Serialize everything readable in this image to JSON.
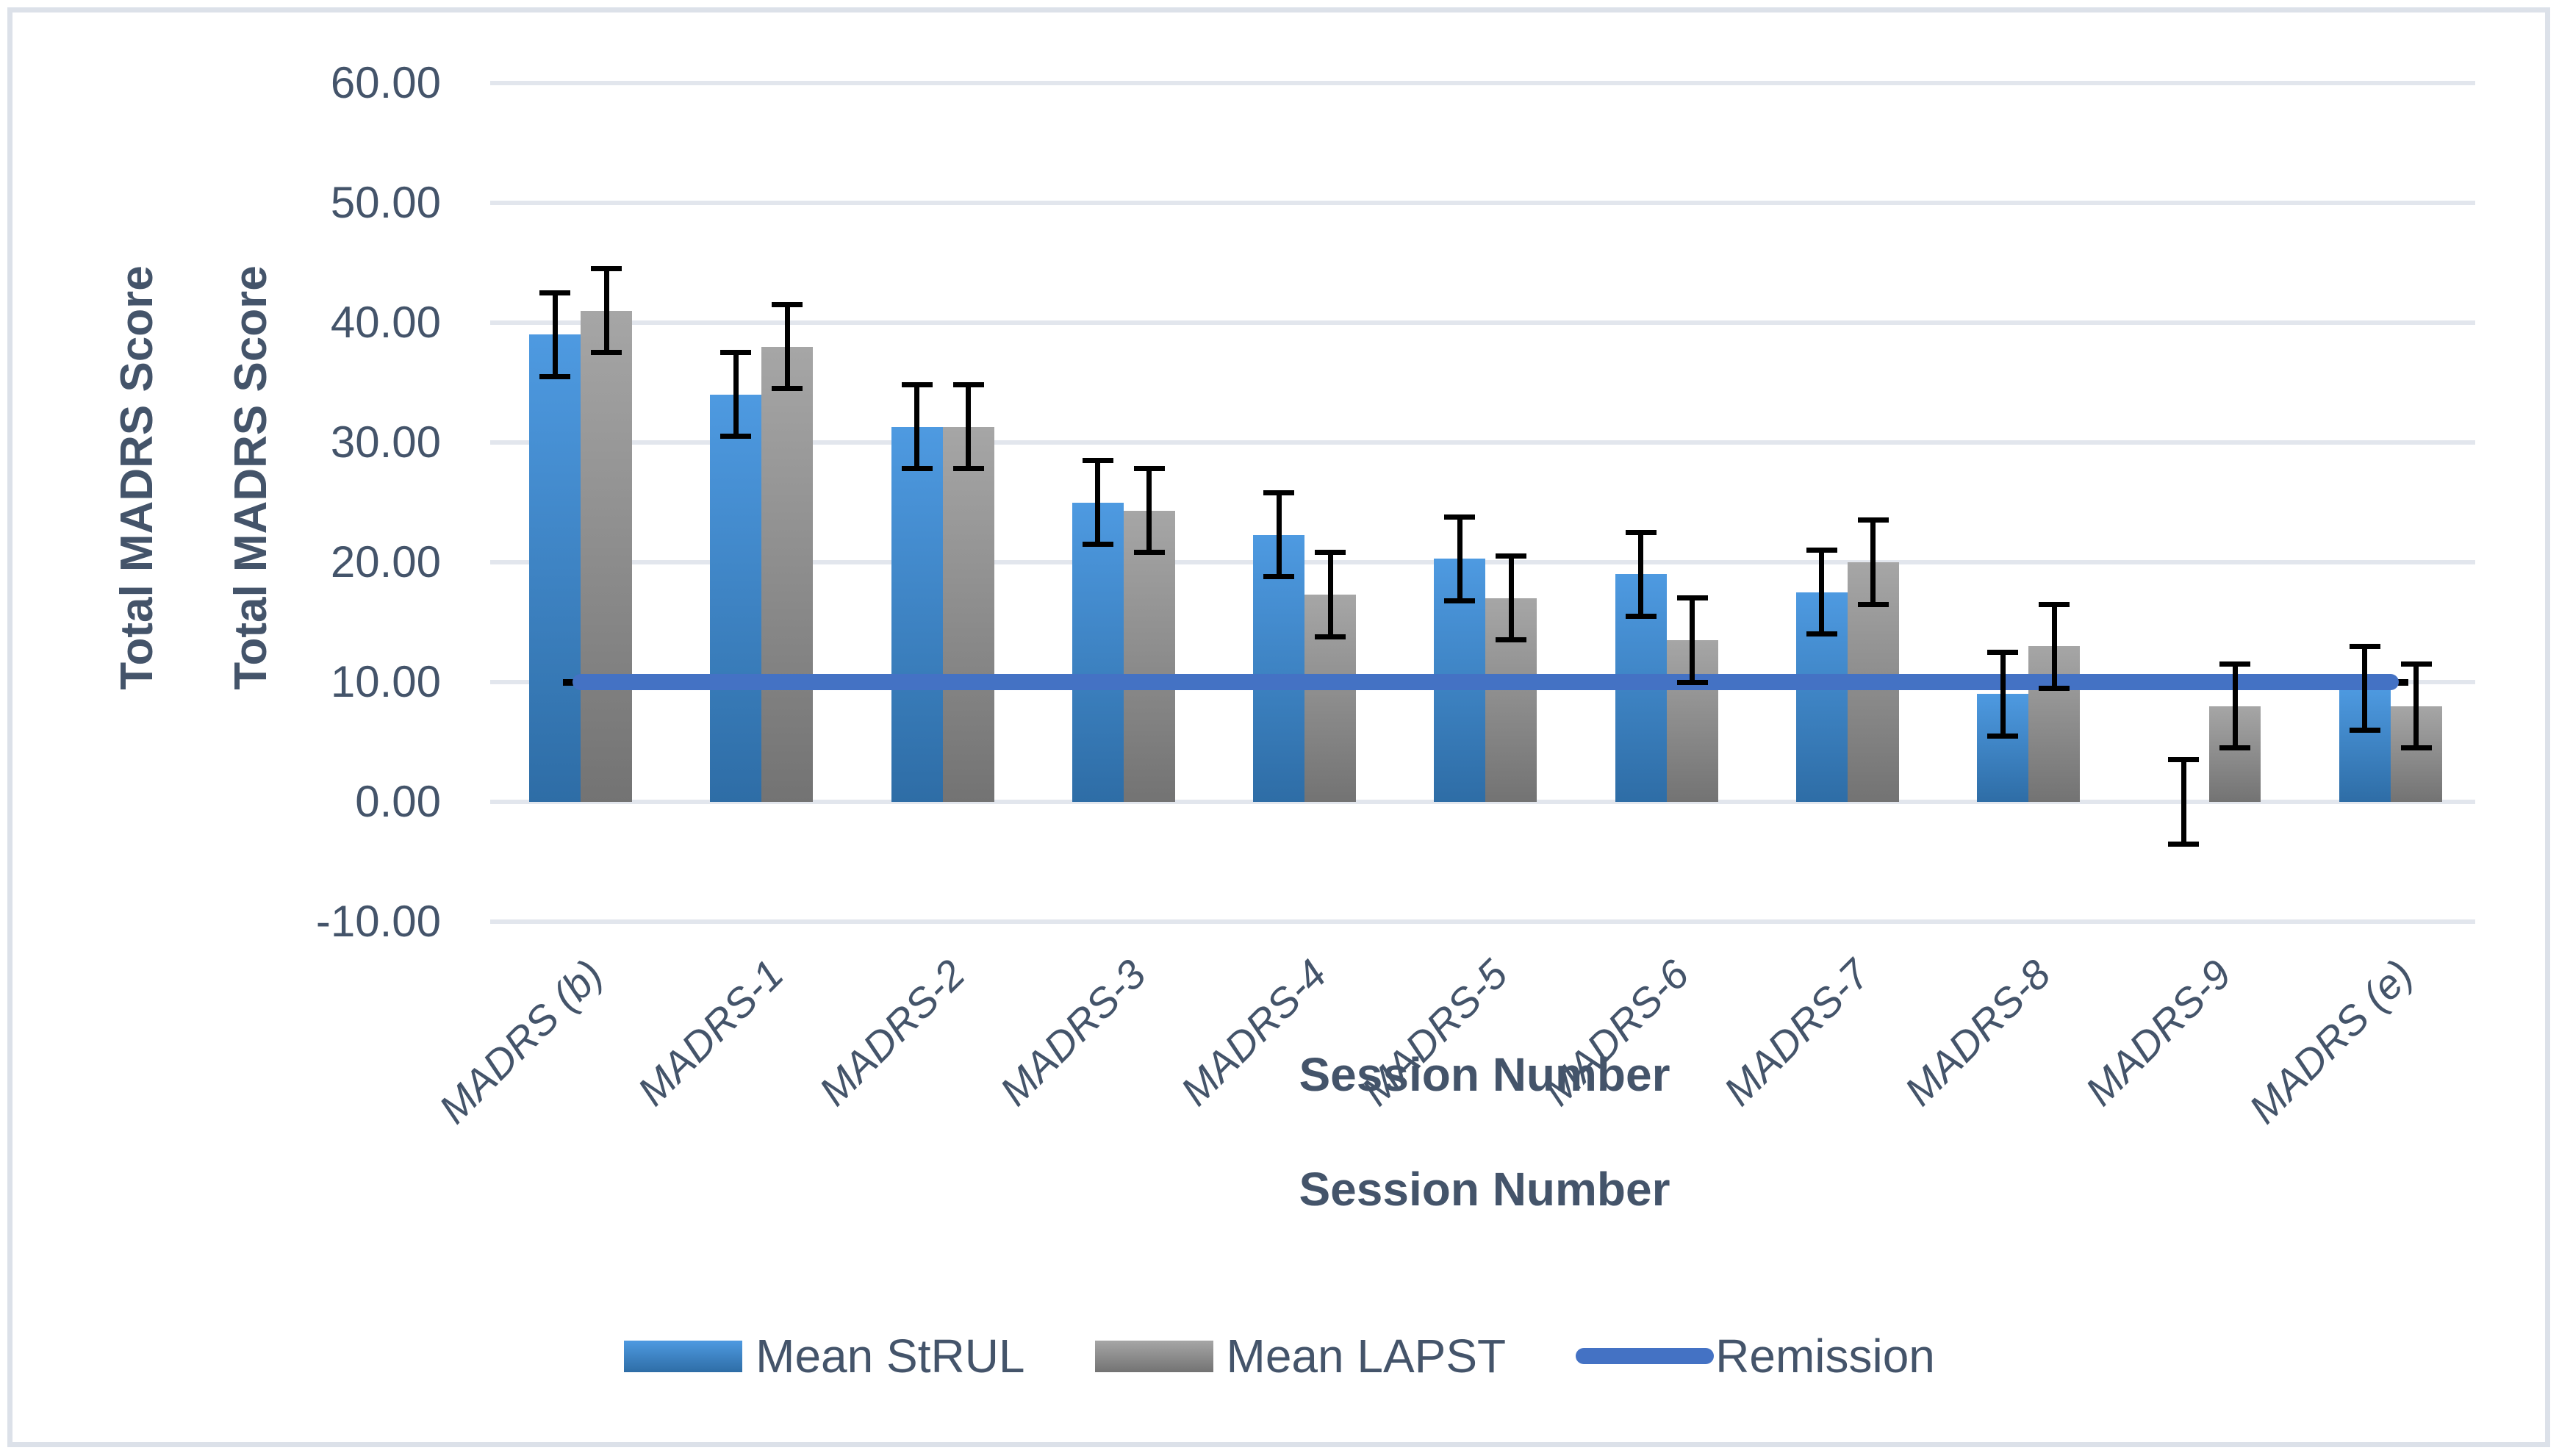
{
  "chart_data": {
    "type": "bar",
    "categories": [
      "MADRS (b)",
      "MADRS-1",
      "MADRS-2",
      "MADRS-3",
      "MADRS-4",
      "MADRS-5",
      "MADRS-6",
      "MADRS-7",
      "MADRS-8",
      "MADRS-9",
      "MADRS (e)"
    ],
    "series": [
      {
        "name": "Mean StRUL",
        "values": [
          39.0,
          34.0,
          31.3,
          25.0,
          22.3,
          20.3,
          19.0,
          17.5,
          9.0,
          0.0,
          9.5
        ],
        "errors": [
          3.5,
          3.5,
          3.5,
          3.5,
          3.5,
          3.5,
          3.5,
          3.5,
          3.5,
          3.5,
          3.5
        ],
        "color_top": "#4E9AE1",
        "color_bottom": "#2E6DA6"
      },
      {
        "name": "Mean LAPST",
        "values": [
          41.0,
          38.0,
          31.3,
          24.3,
          17.3,
          17.0,
          13.5,
          20.0,
          13.0,
          8.0,
          8.0
        ],
        "errors": [
          3.5,
          3.5,
          3.5,
          3.5,
          3.5,
          3.5,
          3.5,
          3.5,
          3.5,
          3.5,
          3.5
        ],
        "color_top": "#A6A6A6",
        "color_bottom": "#737373"
      }
    ],
    "line_series": {
      "name": "Remission",
      "value": 10,
      "color": "#4472C4"
    },
    "ylabels": [
      "Total MADRS Score",
      "Total MADRS Score"
    ],
    "xlabels": [
      "Session Number",
      "Session Number"
    ],
    "y_ticks": [
      "60.00",
      "50.00",
      "40.00",
      "30.00",
      "20.00",
      "10.00",
      "0.00",
      "-10.00"
    ],
    "ylim": [
      -10,
      60
    ],
    "grid": true,
    "legend_position": "bottom",
    "error_bar_color": "#000000",
    "text_color": "#44546A",
    "gridline_color": "#E2E6ED"
  }
}
